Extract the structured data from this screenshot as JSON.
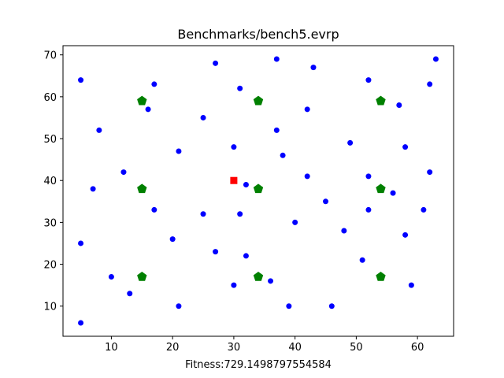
{
  "chart_data": {
    "type": "scatter",
    "title": "Benchmarks/bench5.evrp",
    "xlabel": "Fitness:729.1498797554584",
    "ylabel": "",
    "xlim": [
      2.1,
      65.9
    ],
    "ylim": [
      2.8,
      72.2
    ],
    "xticks": [
      10,
      20,
      30,
      40,
      50,
      60
    ],
    "yticks": [
      10,
      20,
      30,
      40,
      50,
      60,
      70
    ],
    "grid": false,
    "legend": "none",
    "series": [
      {
        "marker": "circle",
        "color": "#0000ff",
        "points": [
          [
            5,
            64
          ],
          [
            5,
            25
          ],
          [
            5,
            6
          ],
          [
            7,
            38
          ],
          [
            8,
            52
          ],
          [
            10,
            17
          ],
          [
            12,
            42
          ],
          [
            13,
            13
          ],
          [
            16,
            57
          ],
          [
            17,
            63
          ],
          [
            17,
            33
          ],
          [
            20,
            26
          ],
          [
            21,
            47
          ],
          [
            21,
            10
          ],
          [
            25,
            55
          ],
          [
            25,
            32
          ],
          [
            27,
            68
          ],
          [
            27,
            23
          ],
          [
            30,
            48
          ],
          [
            30,
            15
          ],
          [
            31,
            62
          ],
          [
            31,
            32
          ],
          [
            32,
            39
          ],
          [
            32,
            22
          ],
          [
            36,
            16
          ],
          [
            37,
            69
          ],
          [
            37,
            52
          ],
          [
            38,
            46
          ],
          [
            39,
            10
          ],
          [
            40,
            30
          ],
          [
            42,
            57
          ],
          [
            42,
            41
          ],
          [
            43,
            67
          ],
          [
            45,
            35
          ],
          [
            46,
            10
          ],
          [
            48,
            28
          ],
          [
            49,
            49
          ],
          [
            51,
            21
          ],
          [
            52,
            64
          ],
          [
            52,
            41
          ],
          [
            52,
            33
          ],
          [
            56,
            37
          ],
          [
            57,
            58
          ],
          [
            58,
            48
          ],
          [
            58,
            27
          ],
          [
            59,
            15
          ],
          [
            61,
            33
          ],
          [
            62,
            63
          ],
          [
            62,
            42
          ],
          [
            63,
            69
          ]
        ]
      },
      {
        "marker": "pentagon",
        "color": "#008000",
        "points": [
          [
            15,
            59
          ],
          [
            34,
            59
          ],
          [
            54,
            59
          ],
          [
            15,
            38
          ],
          [
            34,
            38
          ],
          [
            54,
            38
          ],
          [
            15,
            17
          ],
          [
            34,
            17
          ],
          [
            54,
            17
          ]
        ]
      },
      {
        "marker": "square",
        "color": "#ff0000",
        "points": [
          [
            30,
            40
          ]
        ]
      }
    ]
  }
}
